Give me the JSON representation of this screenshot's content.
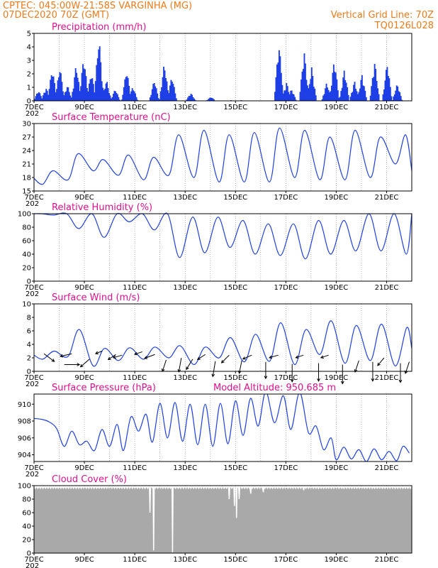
{
  "header": {
    "line1_left": "CPTEC:    045:00W-21:58S   VARGINHA (MG)",
    "line2_left": "07DEC2020  70Z  (GMT)",
    "line1_right": "Vertical Grid Line: 70Z",
    "line2_right": "TQ0126L028"
  },
  "colors": {
    "header": "#ee7a1a",
    "title": "#e0108c",
    "series": "#1f3fe6",
    "cloud": "#a9a9a9"
  },
  "x_axis": {
    "ticks": [
      "7DEC",
      "9DEC",
      "11DEC",
      "13DEC",
      "15DEC",
      "17DEC",
      "19DEC",
      "21DEC"
    ],
    "truncated_label": "202"
  },
  "chart_data": [
    {
      "type": "bar",
      "title": "Precipitation  (mm/h)",
      "ylim": [
        0,
        5
      ],
      "yticks": [
        "0",
        "1",
        "2",
        "3",
        "4",
        "5"
      ],
      "events": [
        [
          0.15,
          0.8
        ],
        [
          0.45,
          1.0
        ],
        [
          0.7,
          2.5
        ],
        [
          1.0,
          2.6
        ],
        [
          1.3,
          1.2
        ],
        [
          1.65,
          2.8
        ],
        [
          1.95,
          3.4
        ],
        [
          2.25,
          2.2
        ],
        [
          2.55,
          4.9
        ],
        [
          2.85,
          1.6
        ],
        [
          3.2,
          0.9
        ],
        [
          3.65,
          2.4
        ],
        [
          3.9,
          1.1
        ],
        [
          4.75,
          1.6
        ],
        [
          5.15,
          2.9
        ],
        [
          5.45,
          1.9
        ],
        [
          6.2,
          0.6
        ],
        [
          7.0,
          0.3
        ],
        [
          7.8,
          0.05
        ],
        [
          8.2,
          0.05
        ],
        [
          9.7,
          4.4
        ],
        [
          10.0,
          1.4
        ],
        [
          10.2,
          0.9
        ],
        [
          10.7,
          3.8
        ],
        [
          11.0,
          2.5
        ],
        [
          11.6,
          1.4
        ],
        [
          11.9,
          3.2
        ],
        [
          12.3,
          2.4
        ],
        [
          12.7,
          1.5
        ],
        [
          13.0,
          2.0
        ],
        [
          13.5,
          3.0
        ],
        [
          14.0,
          2.9
        ],
        [
          14.4,
          1.3
        ]
      ]
    },
    {
      "type": "line",
      "title": "Surface Temperature  (nC)",
      "ylim": [
        15,
        30
      ],
      "yticks": [
        "15",
        "18",
        "21",
        "24",
        "27",
        "30"
      ],
      "highs": [
        19.5,
        23.3,
        22.0,
        23.0,
        22.5,
        27.5,
        28.5,
        27.5,
        28.0,
        29.0,
        28.5,
        27.0,
        28.5,
        27.0,
        27.5,
        26.5,
        25.5
      ],
      "lows": [
        16.5,
        17.5,
        19.5,
        18.5,
        17.5,
        18.5,
        18.0,
        17.0,
        17.0,
        17.0,
        18.0,
        17.5,
        17.5,
        18.0,
        21.0,
        20.5,
        20.0,
        19.5
      ],
      "start": 17.8,
      "end": 19.5
    },
    {
      "type": "line",
      "title": "Relative Humidity  (%)",
      "ylim": [
        0,
        100
      ],
      "yticks": [
        "0",
        "20",
        "40",
        "60",
        "80",
        "100"
      ],
      "lows": [
        98,
        78,
        65,
        88,
        76,
        35,
        42,
        50,
        40,
        38,
        33,
        40,
        45,
        45,
        40,
        55,
        55,
        60,
        55
      ],
      "highs": [
        100,
        100,
        100,
        100,
        100,
        100,
        95,
        95,
        90,
        85,
        85,
        90,
        90,
        100,
        100,
        100,
        100,
        100
      ],
      "start": 100,
      "end": 100
    },
    {
      "type": "line",
      "title": "Surface Wind  (m/s)",
      "ylim": [
        0,
        10
      ],
      "yticks": [
        "0",
        "2",
        "4",
        "6",
        "8",
        "10"
      ],
      "speed_highs": [
        3.0,
        6.2,
        3.4,
        3.5,
        3.6,
        3.8,
        3.6,
        5.0,
        5.5,
        7.2,
        6.2,
        7.5,
        6.8,
        7.0,
        6.5,
        5.0,
        8.2,
        9.0
      ],
      "speed_lows": [
        1.8,
        2.2,
        0.8,
        1.6,
        1.8,
        2.0,
        1.0,
        2.0,
        1.4,
        1.5,
        1.0,
        2.5,
        1.2,
        1.6,
        0.8,
        1.2,
        1.0,
        1.0,
        0.8
      ],
      "start": 2.4,
      "end": 3.4,
      "arrows": [
        [
          0.4,
          2.6,
          0.8,
          0.6
        ],
        [
          1.2,
          1.0,
          1.2,
          0.0
        ],
        [
          1.5,
          2.6,
          -0.9,
          0.2
        ],
        [
          2.2,
          1.8,
          -0.7,
          0.6
        ],
        [
          2.7,
          3.0,
          -0.5,
          0.2
        ],
        [
          3.25,
          2.5,
          -0.6,
          0.4
        ],
        [
          3.5,
          2.4,
          -0.7,
          0.2
        ],
        [
          4.3,
          2.9,
          -0.6,
          0.2
        ],
        [
          4.8,
          2.5,
          -0.8,
          0.3
        ],
        [
          5.25,
          1.7,
          -0.3,
          0.9
        ],
        [
          5.85,
          2.0,
          -0.2,
          1.1
        ],
        [
          6.3,
          1.8,
          -0.5,
          0.8
        ],
        [
          6.8,
          2.5,
          -0.6,
          0.4
        ],
        [
          7.2,
          1.5,
          -0.2,
          1.2
        ],
        [
          7.75,
          2.4,
          -0.6,
          0.6
        ],
        [
          8.25,
          1.6,
          -0.2,
          1.0
        ],
        [
          8.65,
          2.4,
          -0.7,
          0.3
        ],
        [
          9.2,
          1.4,
          0.0,
          1.3
        ],
        [
          9.7,
          2.4,
          -0.7,
          0.2
        ],
        [
          10.25,
          1.1,
          0.0,
          1.4
        ],
        [
          10.7,
          2.4,
          -0.6,
          0.2
        ],
        [
          11.3,
          1.2,
          0.0,
          1.4
        ],
        [
          11.7,
          2.4,
          -0.6,
          0.2
        ],
        [
          12.25,
          1.0,
          0.0,
          1.5
        ],
        [
          12.9,
          1.6,
          -0.3,
          0.9
        ],
        [
          13.45,
          1.4,
          0.0,
          1.5
        ],
        [
          13.9,
          2.0,
          -0.5,
          0.6
        ],
        [
          14.55,
          1.2,
          0.0,
          1.5
        ],
        [
          14.9,
          1.4,
          -0.3,
          0.9
        ]
      ]
    },
    {
      "type": "line",
      "title": "Surface Pressure  (hPa)",
      "subtitle": "Model Altitude:  950.685  m",
      "ylim": [
        903.2,
        911.2
      ],
      "yticks": [
        "904",
        "906",
        "908",
        "910"
      ],
      "points": [
        [
          0.0,
          908.3
        ],
        [
          0.3,
          908.2
        ],
        [
          0.6,
          907.9
        ],
        [
          0.9,
          907.1
        ],
        [
          1.2,
          905.0
        ],
        [
          1.5,
          906.8
        ],
        [
          1.8,
          905.2
        ],
        [
          2.1,
          905.6
        ],
        [
          2.4,
          904.5
        ],
        [
          2.7,
          907.0
        ],
        [
          3.0,
          905.0
        ],
        [
          3.3,
          907.6
        ],
        [
          3.55,
          904.5
        ],
        [
          3.85,
          908.5
        ],
        [
          4.15,
          906.8
        ],
        [
          4.45,
          908.8
        ],
        [
          4.7,
          905.5
        ],
        [
          5.0,
          910.1
        ],
        [
          5.3,
          906.0
        ],
        [
          5.6,
          910.2
        ],
        [
          5.9,
          905.6
        ],
        [
          6.2,
          910.0
        ],
        [
          6.5,
          905.2
        ],
        [
          6.8,
          910.0
        ],
        [
          7.1,
          905.0
        ],
        [
          7.4,
          910.1
        ],
        [
          7.7,
          905.3
        ],
        [
          8.0,
          910.4
        ],
        [
          8.3,
          906.3
        ],
        [
          8.6,
          910.7
        ],
        [
          8.9,
          907.4
        ],
        [
          9.2,
          911.5
        ],
        [
          9.55,
          907.8
        ],
        [
          9.9,
          911.0
        ],
        [
          10.2,
          907.0
        ],
        [
          10.55,
          911.4
        ],
        [
          10.9,
          906.6
        ],
        [
          11.2,
          907.4
        ],
        [
          11.5,
          904.6
        ],
        [
          11.8,
          906.0
        ],
        [
          12.0,
          903.4
        ],
        [
          12.3,
          904.9
        ],
        [
          12.6,
          903.5
        ],
        [
          12.9,
          904.6
        ],
        [
          13.2,
          903.2
        ],
        [
          13.5,
          904.7
        ],
        [
          13.8,
          903.4
        ],
        [
          14.1,
          904.4
        ],
        [
          14.4,
          903.3
        ],
        [
          14.65,
          905.0
        ],
        [
          14.9,
          904.2
        ]
      ]
    },
    {
      "type": "area",
      "title": "Cloud Cover  (%)",
      "ylim": [
        0,
        100
      ],
      "yticks": [
        "0",
        "20",
        "40",
        "60",
        "80",
        "100"
      ],
      "base": 98,
      "dips": [
        [
          4.6,
          60
        ],
        [
          4.75,
          4
        ],
        [
          5.5,
          1
        ],
        [
          7.75,
          80
        ],
        [
          7.95,
          70
        ],
        [
          8.05,
          52
        ],
        [
          8.15,
          80
        ],
        [
          8.6,
          88
        ],
        [
          9.1,
          90
        ],
        [
          10.7,
          93
        ],
        [
          11.3,
          95
        ],
        [
          12.3,
          96
        ],
        [
          13.5,
          97
        ]
      ]
    }
  ]
}
